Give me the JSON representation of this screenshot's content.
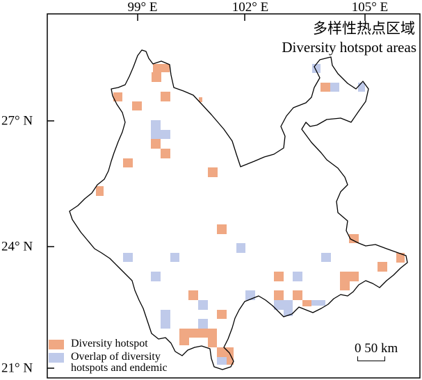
{
  "axes": {
    "top_ticks": [
      "99° E",
      "102° E",
      "105° E"
    ],
    "left_ticks": [
      "27° N",
      "24° N",
      "21° N"
    ]
  },
  "title": {
    "cn": "多样性热点区域",
    "en": "Diversity hotspot areas"
  },
  "legend": {
    "items": [
      {
        "label": "Diversity hotspot",
        "color": "#f0a883"
      },
      {
        "label": "Overlap of diversity hotspots and endemic",
        "color": "#bfcaea"
      }
    ]
  },
  "scale_bar": {
    "zero": "0",
    "value": "50 km"
  },
  "colors": {
    "hotspot": "#f0a883",
    "overlap": "#bfcaea",
    "outline": "#000000"
  }
}
